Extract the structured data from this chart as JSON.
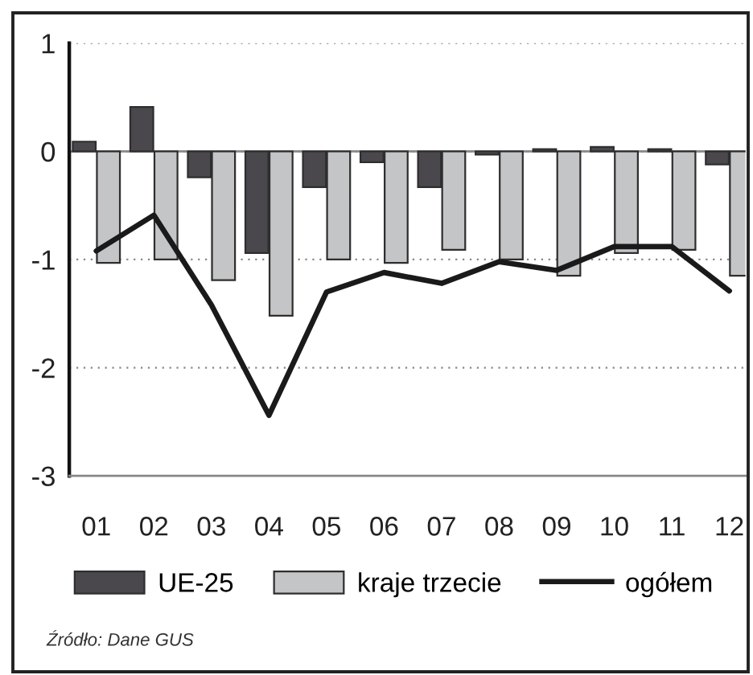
{
  "chart_data": {
    "type": "bar",
    "categories": [
      "01",
      "02",
      "03",
      "04",
      "05",
      "06",
      "07",
      "08",
      "09",
      "10",
      "11",
      "12"
    ],
    "series": [
      {
        "name": "UE-25",
        "color": "#4a484d",
        "values": [
          0.09,
          0.41,
          -0.24,
          -0.94,
          -0.33,
          -0.1,
          -0.33,
          -0.03,
          0.02,
          0.04,
          0.02,
          -0.12
        ]
      },
      {
        "name": "kraje trzecie",
        "color": "#c4c5c7",
        "values": [
          -1.03,
          -1.0,
          -1.19,
          -1.52,
          -1.0,
          -1.03,
          -0.91,
          -1.0,
          -1.15,
          -0.94,
          -0.91,
          -1.15
        ]
      },
      {
        "name": "ogółem",
        "type": "line",
        "color": "#1a1a1a",
        "values": [
          -0.92,
          -0.59,
          -1.42,
          -2.44,
          -1.3,
          -1.12,
          -1.22,
          -1.02,
          -1.1,
          -0.88,
          -0.88,
          -1.29
        ]
      }
    ],
    "ylim": [
      -3,
      1
    ],
    "yticks": [
      1,
      0,
      -1,
      -2,
      -3
    ],
    "ref_lines": [
      {
        "axis": "y",
        "value": 0,
        "color": "#888888"
      }
    ],
    "grid": "y",
    "legend": "bottom",
    "annotations": [
      "Źródło: Dane GUS"
    ]
  }
}
